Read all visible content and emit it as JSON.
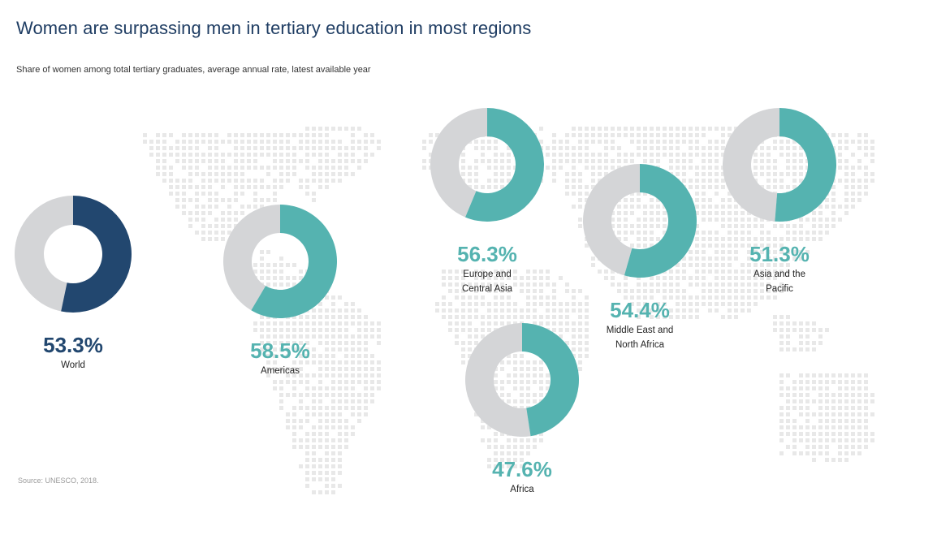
{
  "title": "Women are surpassing men in tertiary education in most regions",
  "subtitle": "Share of women among total tertiary graduates, average annual rate, latest available year",
  "source": "Source: UNESCO, 2018.",
  "colors": {
    "world": "#22476f",
    "region": "#55b3b0",
    "remainder": "#d4d5d7",
    "map_dots": "#e8e8e8",
    "title": "#1f3d63"
  },
  "chart_data": {
    "type": "pie",
    "variant": "donut",
    "unit": "%",
    "items": [
      {
        "region": "World",
        "label_lines": [
          "World"
        ],
        "value": 53.3,
        "display": "53.3%",
        "color": "world"
      },
      {
        "region": "Americas",
        "label_lines": [
          "Americas"
        ],
        "value": 58.5,
        "display": "58.5%",
        "color": "region"
      },
      {
        "region": "Europe and Central Asia",
        "label_lines": [
          "Europe and",
          "Central Asia"
        ],
        "value": 56.3,
        "display": "56.3%",
        "color": "region"
      },
      {
        "region": "Middle East and North Africa",
        "label_lines": [
          "Middle East and",
          "North Africa"
        ],
        "value": 54.4,
        "display": "54.4%",
        "color": "region"
      },
      {
        "region": "Asia and the Pacific",
        "label_lines": [
          "Asia and the",
          "Pacific"
        ],
        "value": 51.3,
        "display": "51.3%",
        "color": "region"
      },
      {
        "region": "Africa",
        "label_lines": [
          "Africa"
        ],
        "value": 47.6,
        "display": "47.6%",
        "color": "region"
      }
    ]
  }
}
